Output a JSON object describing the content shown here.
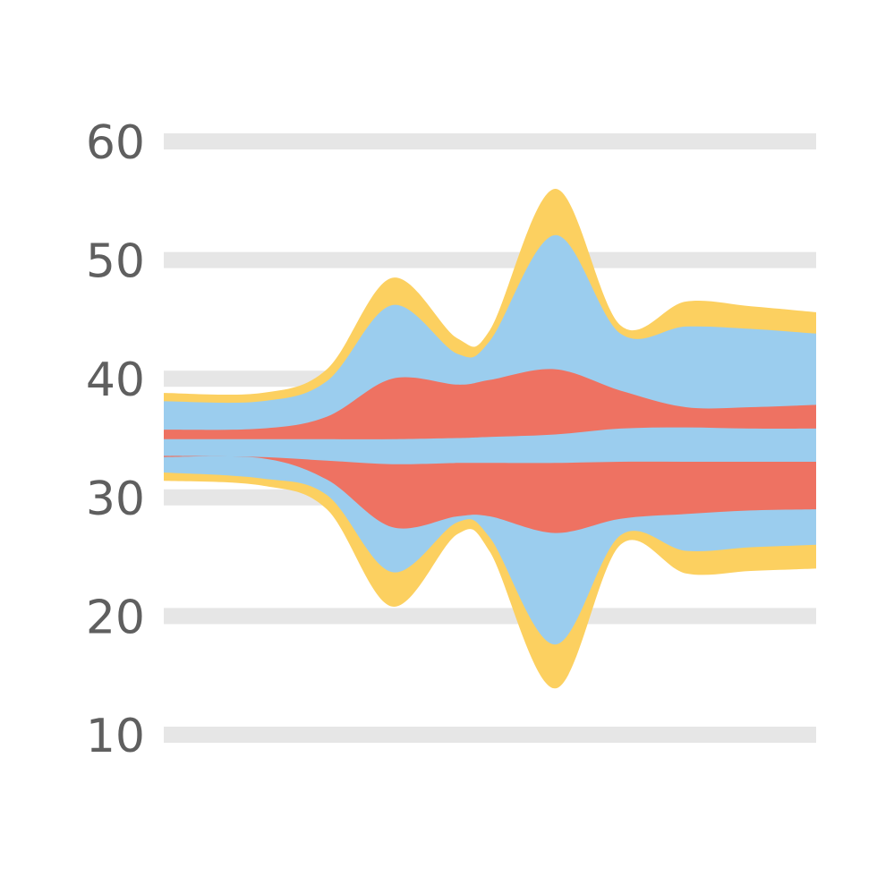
{
  "chart_data": {
    "type": "area",
    "title": "",
    "xlabel": "",
    "ylabel": "",
    "ylim": [
      10,
      60
    ],
    "xlim": [
      0,
      1
    ],
    "grid": true,
    "yticks": [
      60,
      50,
      40,
      30,
      20,
      10
    ],
    "tick_labels": [
      "60",
      "50",
      "40",
      "30",
      "20",
      "10"
    ],
    "x": [
      0,
      0.15,
      0.25,
      0.35,
      0.45,
      0.5,
      0.6,
      0.7,
      0.8,
      0.9,
      1.0
    ],
    "center_line": [
      34.7,
      34.7,
      34.6,
      34.8,
      34.5,
      34.5,
      34.9,
      35.4,
      35.6,
      35.6,
      35.6
    ],
    "layers": [
      {
        "color": "#fcd060",
        "upper": [
          38.8,
          38.8,
          40.8,
          48.5,
          43.4,
          44.1,
          56.0,
          44.5,
          46.5,
          46.1,
          45.6
        ],
        "lower": [
          31.4,
          31.0,
          29.0,
          20.8,
          26.9,
          25.4,
          13.9,
          26.0,
          23.6,
          23.8,
          24.0
        ]
      },
      {
        "color": "#9bcdee",
        "upper": [
          38.1,
          38.1,
          39.8,
          46.2,
          42.1,
          43.2,
          52.1,
          43.8,
          44.4,
          44.2,
          43.8
        ],
        "lower": [
          32.1,
          31.6,
          30.2,
          23.7,
          27.9,
          26.6,
          17.6,
          26.8,
          25.5,
          25.8,
          26.0
        ]
      },
      {
        "color": "#ee7262",
        "upper": [
          35.7,
          35.8,
          36.8,
          40.0,
          39.5,
          39.9,
          40.8,
          39.0,
          37.6,
          37.6,
          37.8
        ],
        "lower": [
          33.4,
          33.3,
          31.5,
          27.5,
          28.4,
          28.4,
          27.0,
          28.2,
          28.6,
          28.9,
          29.0
        ]
      },
      {
        "color": "#9bcdee",
        "upper": [
          34.9,
          34.9,
          34.9,
          34.9,
          35.0,
          35.1,
          35.3,
          35.8,
          35.9,
          35.8,
          35.8
        ],
        "lower": [
          33.5,
          33.4,
          33.1,
          32.8,
          32.9,
          32.9,
          32.9,
          33.0,
          33.0,
          33.0,
          33.0
        ]
      }
    ]
  }
}
